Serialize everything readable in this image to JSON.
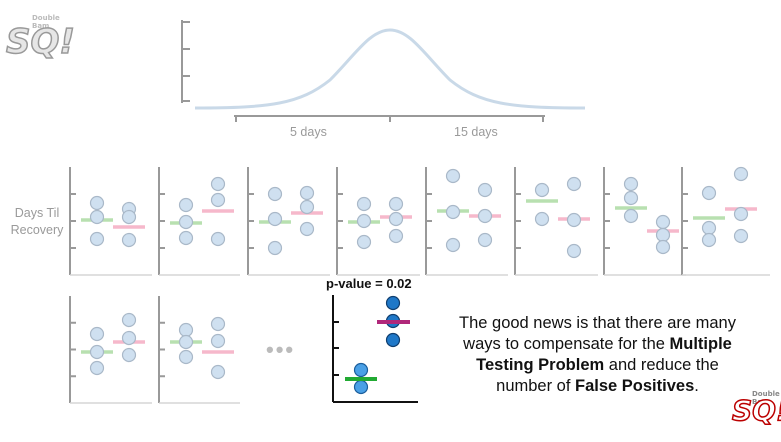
{
  "top_chart": {
    "tick_labels": [
      "5 days",
      "15 days"
    ]
  },
  "y_axis_label_lines": [
    "Days Til",
    "Recovery"
  ],
  "p_value_label": "p-value = 0.02",
  "ellipsis": "•••",
  "caption": {
    "line1": "The good news is that there are many",
    "line2_plain": "ways to compensate for the ",
    "line2_bold": "Multiple",
    "line3_bold": "Testing Problem",
    "line3_plain": " and reduce the",
    "line4_plain": "number of ",
    "line4_bold": "False Positives",
    "line4_end": "."
  },
  "logo": {
    "small_text": "Double Bam",
    "big_text": "SQ!"
  },
  "colors": {
    "axis": "#999999",
    "curve": "#c9d9e8",
    "dot_fill": "#cfe0f0",
    "dot_stroke": "#a9b8c8",
    "mean_green": "#b8e0b0",
    "mean_pink": "#f6b8cb",
    "highlight_dot": "#1f78c8",
    "highlight_green": "#22aa33",
    "highlight_pink": "#b0287a"
  }
}
